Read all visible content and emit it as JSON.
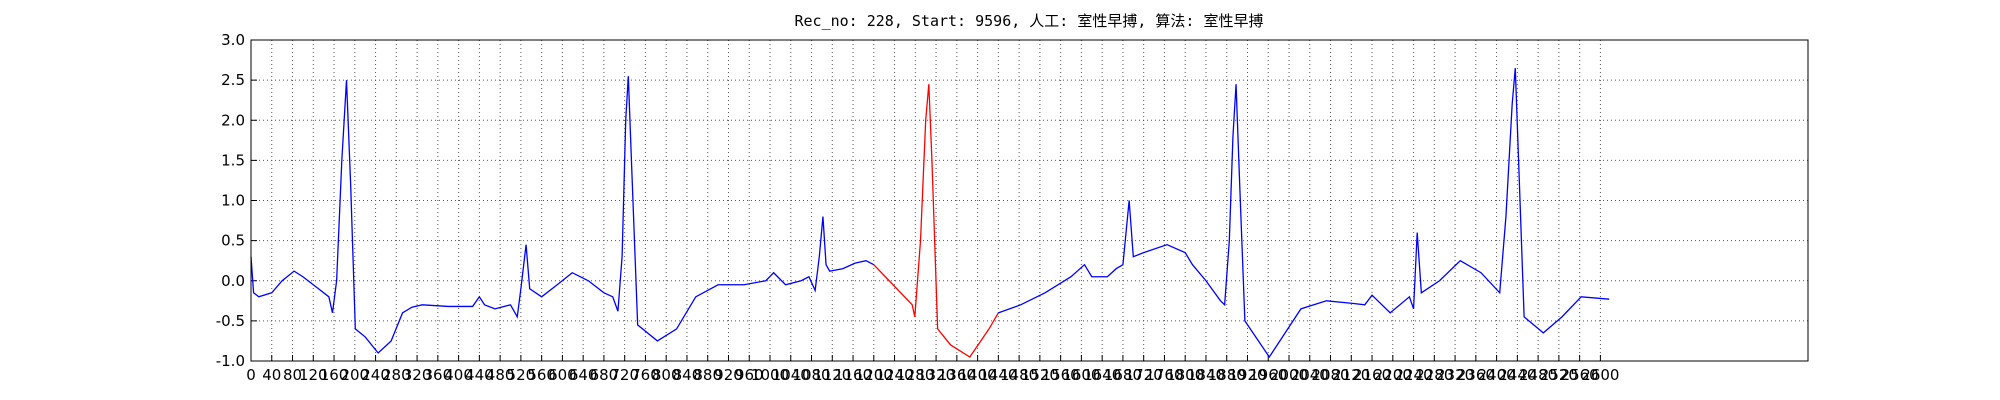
{
  "chart_data": {
    "type": "line",
    "title": "Rec_no: 228, Start: 9596, 人工: 室性早搏, 算法: 室性早搏",
    "xlim": [
      0,
      3000
    ],
    "ylim": [
      -1,
      3
    ],
    "xticks": [
      0,
      40,
      80,
      120,
      160,
      200,
      240,
      280,
      320,
      360,
      400,
      440,
      480,
      520,
      560,
      600,
      640,
      680,
      720,
      760,
      800,
      840,
      880,
      920,
      960,
      1000,
      1040,
      1080,
      1120,
      1160,
      1200,
      1240,
      1280,
      1320,
      1360,
      1400,
      1440,
      1480,
      1520,
      1560,
      1600,
      1640,
      1680,
      1720,
      1760,
      1800,
      1840,
      1880,
      1920,
      1960,
      2000,
      2040,
      2080,
      2120,
      2160,
      2200,
      2240,
      2280,
      2320,
      2360,
      2400,
      2440,
      2480,
      2520,
      2560,
      2600
    ],
    "yticks": [
      {
        "value": -1,
        "label": "-1.0"
      },
      -0.5,
      {
        "value": 0,
        "label": "0.0"
      },
      0.5,
      {
        "value": 1,
        "label": "1.0"
      },
      1.5,
      {
        "value": 2,
        "label": "2.0"
      },
      2.5,
      {
        "value": 3,
        "label": "3.0"
      }
    ],
    "grid": true,
    "series": [
      {
        "color": "#0000ff",
        "x": [
          0,
          5,
          15,
          40,
          60,
          83,
          100,
          130,
          150,
          157,
          165,
          175,
          184,
          192,
          201,
          220,
          245,
          270,
          292,
          310,
          330,
          380,
          427,
          440,
          450,
          470,
          500,
          513,
          520,
          530,
          537,
          560,
          590,
          619,
          650,
          680,
          697,
          707,
          715,
          722,
          727,
          733,
          745,
          783,
          820,
          857,
          900,
          950,
          992,
          1007,
          1030,
          1060,
          1075,
          1087,
          1095,
          1102,
          1108,
          1115,
          1140,
          1164,
          1185,
          1200
        ],
        "values": [
          0.3,
          -0.15,
          -0.2,
          -0.15,
          0.0,
          0.12,
          0.05,
          -0.1,
          -0.2,
          -0.4,
          0.0,
          1.5,
          2.5,
          1.2,
          -0.6,
          -0.7,
          -0.9,
          -0.75,
          -0.4,
          -0.33,
          -0.3,
          -0.32,
          -0.32,
          -0.2,
          -0.3,
          -0.35,
          -0.3,
          -0.45,
          -0.1,
          0.45,
          -0.1,
          -0.2,
          -0.05,
          0.1,
          0.0,
          -0.15,
          -0.2,
          -0.38,
          0.3,
          2.0,
          2.55,
          1.5,
          -0.55,
          -0.75,
          -0.6,
          -0.2,
          -0.05,
          -0.05,
          0.0,
          0.1,
          -0.05,
          0.0,
          0.05,
          -0.12,
          0.3,
          0.8,
          0.2,
          0.12,
          0.15,
          0.22,
          0.25,
          0.2
        ]
      },
      {
        "color": "#ff0000",
        "x": [
          1200,
          1237,
          1274,
          1279,
          1290,
          1300,
          1306,
          1312,
          1323,
          1348,
          1385,
          1422,
          1440
        ],
        "values": [
          0.2,
          -0.05,
          -0.3,
          -0.45,
          0.5,
          2.0,
          2.45,
          1.5,
          -0.6,
          -0.8,
          -0.95,
          -0.6,
          -0.4
        ]
      },
      {
        "color": "#0000ff",
        "x": [
          1440,
          1483,
          1530,
          1580,
          1606,
          1620,
          1650,
          1667,
          1680,
          1692,
          1700,
          1720,
          1765,
          1800,
          1814,
          1840,
          1868,
          1876,
          1885,
          1892,
          1898,
          1905,
          1915,
          1962,
          2023,
          2072,
          2120,
          2146,
          2160,
          2195,
          2232,
          2240,
          2247,
          2255,
          2290,
          2330,
          2370,
          2406,
          2418,
          2430,
          2436,
          2444,
          2453,
          2490,
          2526,
          2563,
          2617
        ],
        "values": [
          -0.4,
          -0.3,
          -0.15,
          0.05,
          0.2,
          0.05,
          0.05,
          0.15,
          0.2,
          1.0,
          0.3,
          0.35,
          0.45,
          0.35,
          0.2,
          0.0,
          -0.25,
          -0.3,
          0.5,
          1.8,
          2.45,
          1.2,
          -0.5,
          -0.95,
          -0.35,
          -0.25,
          -0.28,
          -0.3,
          -0.18,
          -0.4,
          -0.2,
          -0.35,
          0.6,
          -0.15,
          0.0,
          0.25,
          0.1,
          -0.15,
          0.8,
          2.2,
          2.65,
          1.2,
          -0.45,
          -0.65,
          -0.45,
          -0.2,
          -0.23
        ]
      }
    ]
  }
}
